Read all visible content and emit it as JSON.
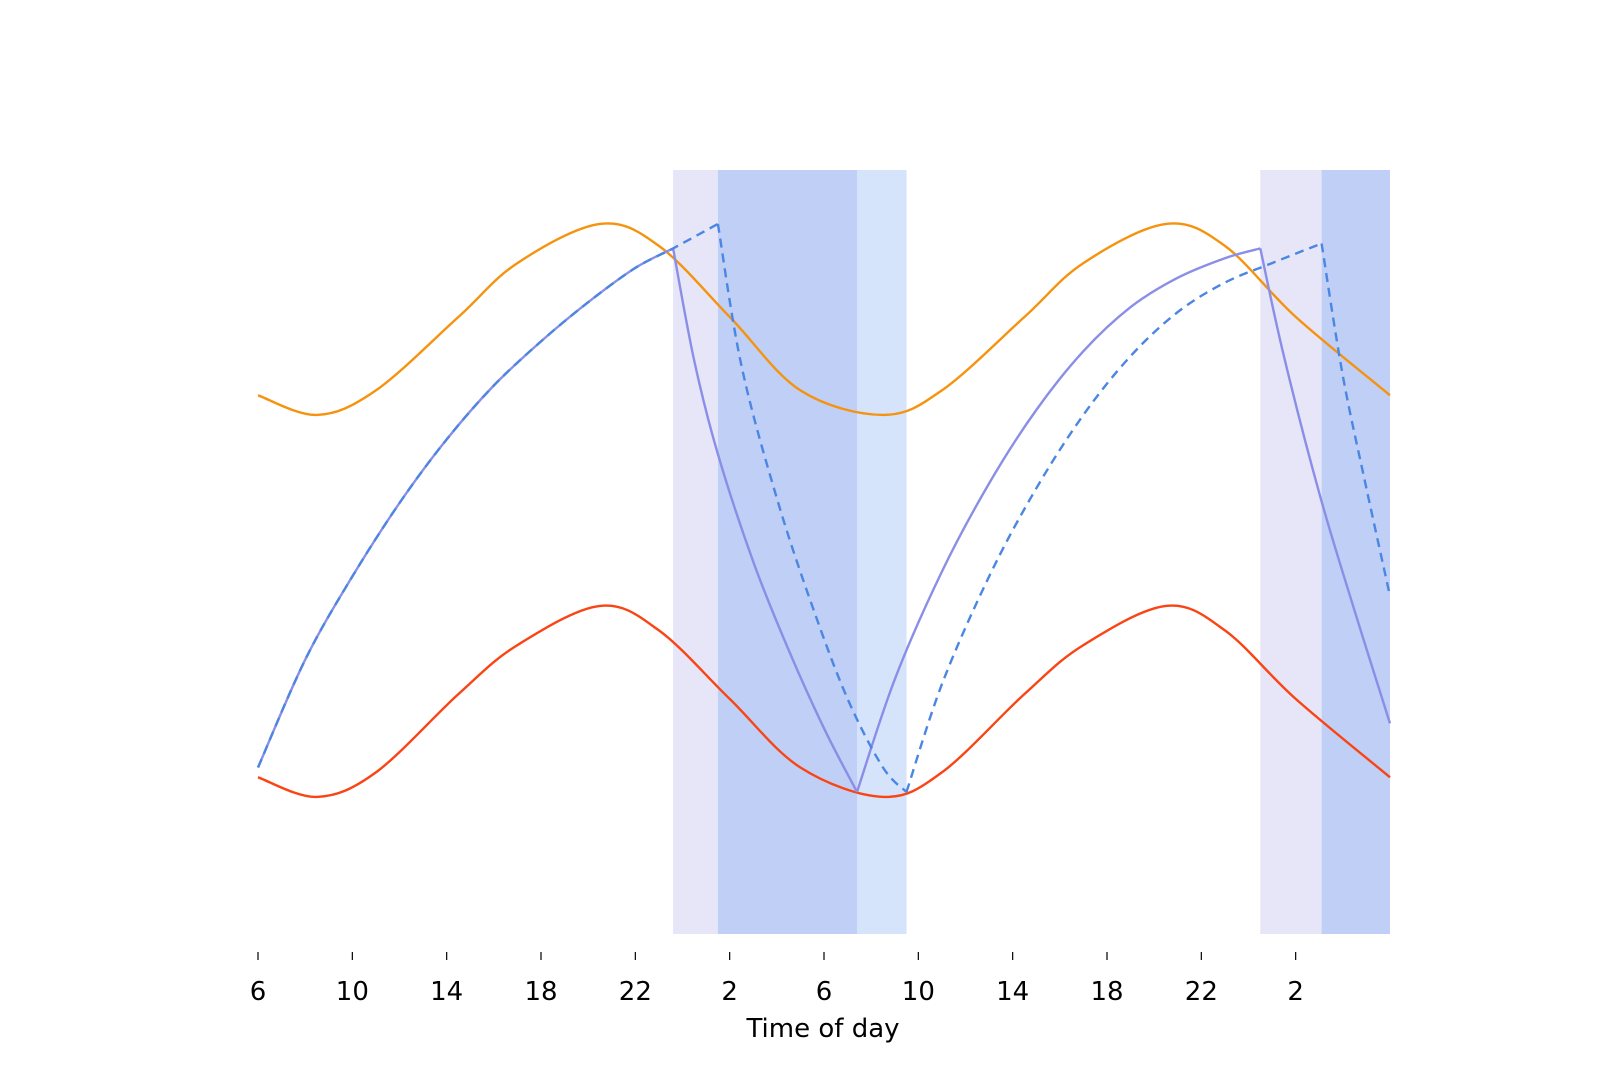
{
  "chart_data": {
    "type": "line",
    "title": "",
    "xlabel": "Time of day",
    "ylabel": "",
    "xlim": [
      6,
      54
    ],
    "ylim": [
      -0.28,
      1.28
    ],
    "x_tick_labels": [
      {
        "x": 6,
        "label": "6"
      },
      {
        "x": 10,
        "label": "10"
      },
      {
        "x": 14,
        "label": "14"
      },
      {
        "x": 18,
        "label": "18"
      },
      {
        "x": 22,
        "label": "22"
      },
      {
        "x": 26,
        "label": "2"
      },
      {
        "x": 30,
        "label": "6"
      },
      {
        "x": 34,
        "label": "10"
      },
      {
        "x": 38,
        "label": "14"
      },
      {
        "x": 42,
        "label": "18"
      },
      {
        "x": 46,
        "label": "22"
      },
      {
        "x": 50,
        "label": "2"
      }
    ],
    "grid": false,
    "legend": "none",
    "shaded_regions": [
      {
        "x0": 23.6,
        "x1": 25.5,
        "color": "#e6e6f8"
      },
      {
        "x0": 25.5,
        "x1": 31.4,
        "color": "#c0cff6"
      },
      {
        "x0": 31.4,
        "x1": 33.5,
        "color": "#d5e3fb"
      },
      {
        "x0": 48.5,
        "x1": 51.1,
        "color": "#e6e6f8"
      },
      {
        "x0": 51.1,
        "x1": 54.0,
        "color": "#c0cff6"
      }
    ],
    "series": [
      {
        "color": "#f5930f",
        "style": "solid",
        "x": [
          6,
          8.5,
          11,
          14.5,
          17,
          20.5,
          23,
          26,
          29,
          32.5,
          35,
          38.5,
          41,
          44.5,
          47,
          50,
          54
        ],
        "y": [
          0.82,
          0.78,
          0.83,
          0.98,
          1.09,
          1.17,
          1.125,
          0.98,
          0.83,
          0.78,
          0.83,
          0.98,
          1.09,
          1.17,
          1.125,
          0.98,
          0.82
        ]
      },
      {
        "color": "#fa4414",
        "style": "solid",
        "x": [
          6,
          8.5,
          11,
          14.5,
          17,
          20.5,
          23,
          26,
          29,
          32.5,
          35,
          38.5,
          41,
          44.5,
          47,
          50,
          54
        ],
        "y": [
          0.04,
          0.0,
          0.05,
          0.21,
          0.31,
          0.39,
          0.34,
          0.2,
          0.06,
          0.0,
          0.05,
          0.21,
          0.31,
          0.39,
          0.34,
          0.2,
          0.04
        ]
      },
      {
        "color": "#8a8ee6",
        "style": "solid",
        "x": [
          6,
          8,
          10,
          12,
          14,
          16,
          18,
          20,
          22,
          23.6,
          24.5,
          25.5,
          27,
          28.5,
          30,
          31.4,
          33,
          35,
          37,
          39,
          41,
          43,
          45,
          47,
          48.5,
          49.5,
          51,
          52.5,
          54
        ],
        "y": [
          0.06,
          0.28,
          0.45,
          0.6,
          0.73,
          0.84,
          0.93,
          1.01,
          1.08,
          1.12,
          0.89,
          0.7,
          0.48,
          0.3,
          0.14,
          0.01,
          0.24,
          0.46,
          0.64,
          0.79,
          0.91,
          1.0,
          1.06,
          1.1,
          1.12,
          0.9,
          0.62,
          0.38,
          0.15
        ]
      },
      {
        "color": "#4a86e2",
        "style": "dashed",
        "x": [
          6,
          8,
          10,
          12,
          14,
          16,
          18,
          20,
          22,
          23.6,
          25.5,
          26.5,
          28,
          29.5,
          31,
          32.5,
          33.5,
          35,
          37,
          39,
          41,
          43,
          45,
          47,
          49,
          51.1,
          52,
          53,
          54
        ],
        "y": [
          0.06,
          0.28,
          0.45,
          0.6,
          0.73,
          0.84,
          0.93,
          1.01,
          1.08,
          1.12,
          1.17,
          0.88,
          0.61,
          0.39,
          0.2,
          0.06,
          0.01,
          0.23,
          0.45,
          0.63,
          0.78,
          0.9,
          0.99,
          1.05,
          1.09,
          1.13,
          0.86,
          0.63,
          0.41
        ]
      }
    ]
  }
}
